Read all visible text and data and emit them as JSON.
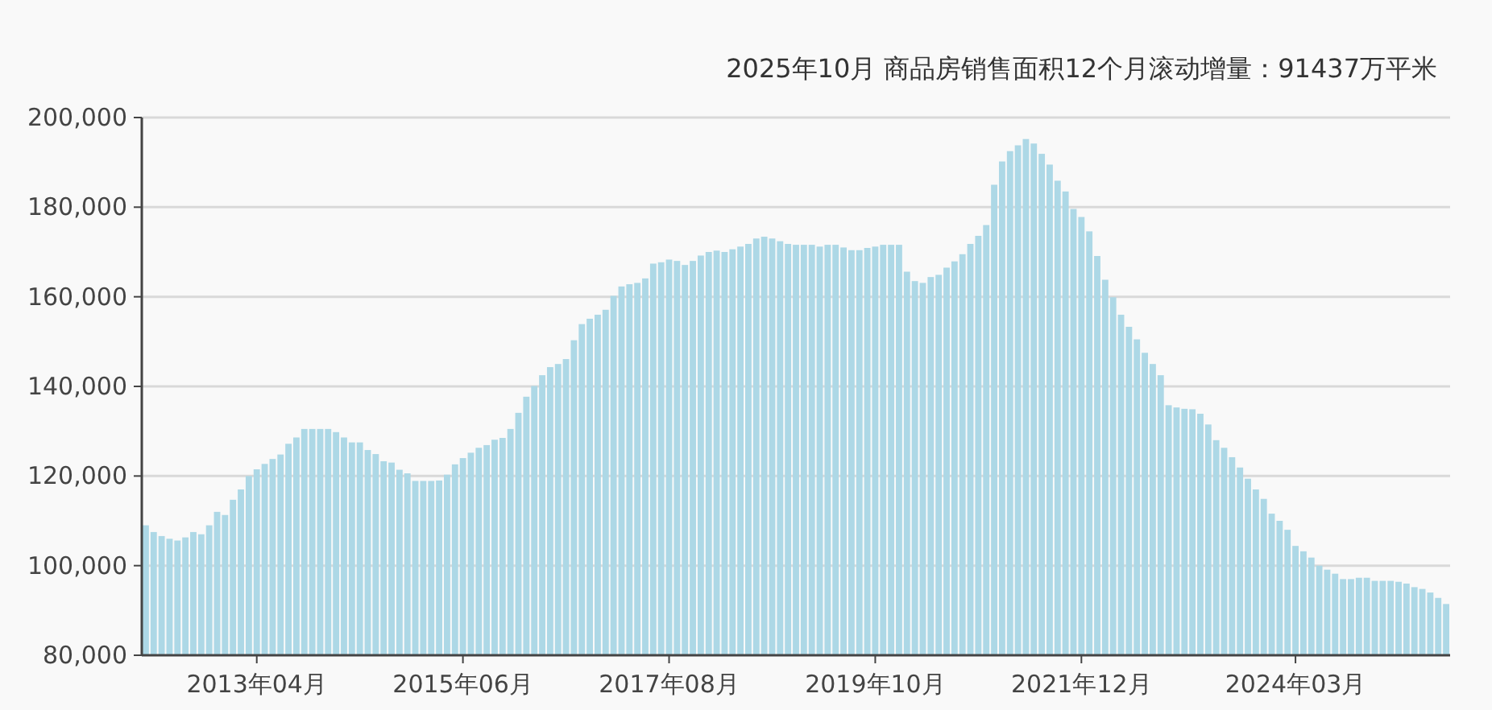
{
  "chart_data": {
    "type": "bar",
    "title": "2025年10月 商品房销售面积12个月滚动增量：91437万平米",
    "categories": [
      null,
      null,
      null,
      null,
      null,
      null,
      null,
      null,
      null,
      null,
      null,
      null,
      null,
      null,
      "2013年04月",
      null,
      null,
      null,
      null,
      null,
      null,
      null,
      null,
      null,
      null,
      null,
      null,
      null,
      null,
      null,
      null,
      null,
      null,
      null,
      null,
      null,
      null,
      null,
      null,
      null,
      "2015年06月",
      null,
      null,
      null,
      null,
      null,
      null,
      null,
      null,
      null,
      null,
      null,
      null,
      null,
      null,
      null,
      null,
      null,
      null,
      null,
      null,
      null,
      null,
      null,
      null,
      null,
      "2017年08月",
      null,
      null,
      null,
      null,
      null,
      null,
      null,
      null,
      null,
      null,
      null,
      null,
      null,
      null,
      null,
      null,
      null,
      null,
      null,
      null,
      null,
      null,
      null,
      null,
      null,
      "2019年10月",
      null,
      null,
      null,
      null,
      null,
      null,
      null,
      null,
      null,
      null,
      null,
      null,
      null,
      null,
      null,
      null,
      null,
      null,
      null,
      null,
      null,
      null,
      null,
      null,
      null,
      "2021年12月",
      null,
      null,
      null,
      null,
      null,
      null,
      null,
      null,
      null,
      null,
      null,
      null,
      null,
      null,
      null,
      null,
      null,
      null,
      null,
      null,
      null,
      null,
      null,
      null,
      null,
      null,
      "2024年03月",
      null,
      null,
      null,
      null,
      null,
      null,
      null,
      null,
      null,
      null,
      null,
      null,
      null,
      null,
      null,
      null,
      null,
      null,
      null
    ],
    "values": [
      109000,
      107500,
      106600,
      106000,
      105600,
      106300,
      107500,
      107000,
      109000,
      112000,
      111300,
      114700,
      117000,
      120000,
      121500,
      122700,
      123800,
      124800,
      127200,
      128600,
      130500,
      130500,
      130500,
      130500,
      129800,
      128600,
      127500,
      127500,
      125800,
      124900,
      123300,
      123000,
      121400,
      120600,
      118900,
      118900,
      118900,
      119000,
      120300,
      122600,
      124000,
      125200,
      126300,
      126900,
      128100,
      128500,
      130500,
      134100,
      137700,
      140100,
      142500,
      144300,
      145000,
      146100,
      150300,
      153900,
      155100,
      156000,
      157100,
      160200,
      162300,
      162800,
      163100,
      164100,
      167400,
      167700,
      168300,
      168000,
      167100,
      168000,
      169200,
      170000,
      170300,
      170000,
      170600,
      171200,
      171800,
      173000,
      173400,
      173000,
      172400,
      171800,
      171600,
      171600,
      171600,
      171200,
      171600,
      171600,
      171000,
      170400,
      170400,
      170900,
      171200,
      171600,
      171600,
      171600,
      165600,
      163500,
      163100,
      164400,
      164900,
      166500,
      167900,
      169500,
      171800,
      173600,
      176000,
      185000,
      190200,
      192500,
      193800,
      195200,
      194200,
      191900,
      189500,
      185900,
      183500,
      179600,
      177800,
      174600,
      169100,
      163800,
      159900,
      156000,
      153300,
      150500,
      147500,
      145000,
      142500,
      135800,
      135300,
      135000,
      134900,
      133900,
      131500,
      128000,
      126300,
      124200,
      121900,
      119400,
      117000,
      114900,
      111600,
      110000,
      108000,
      104400,
      103200,
      101800,
      100000,
      99100,
      98200,
      97000,
      97000,
      97300,
      97300,
      96600,
      96600,
      96600,
      96400,
      96000,
      95200,
      94800,
      94000,
      92800,
      91437
    ],
    "color": "#add8e6",
    "ylim": [
      80000,
      200000
    ],
    "yticks": [
      {
        "value": 80000,
        "label": "80,000"
      },
      {
        "value": 100000,
        "label": "100,000"
      },
      {
        "value": 120000,
        "label": "120,000"
      },
      {
        "value": 140000,
        "label": "140,000"
      },
      {
        "value": 160000,
        "label": "160,000"
      },
      {
        "value": 180000,
        "label": "180,000"
      },
      {
        "value": 200000,
        "label": "200,000"
      }
    ],
    "grid": "y"
  }
}
